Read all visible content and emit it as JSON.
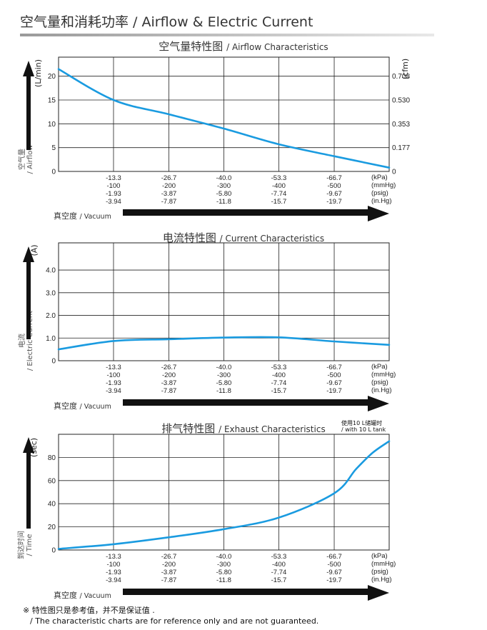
{
  "page": {
    "title": "空气量和消耗功率 / Airflow & Electric Current",
    "vacuum_label_zh": "真空度",
    "vacuum_label_en": "/ Vacuum",
    "note_line1": "※ 特性图只是参考值，并不是保证值 .",
    "note_line2": "/ The characteristic charts are for reference only and are not guaranteed."
  },
  "x_axis": {
    "rows": [
      [
        "-13.3",
        "-26.7",
        "-40.0",
        "-53.3",
        "-66.7"
      ],
      [
        "-100",
        "-200",
        "-300",
        "-400",
        "-500"
      ],
      [
        "-1.93",
        "-3.87",
        "-5.80",
        "-7.74",
        "-9.67"
      ],
      [
        "-3.94",
        "-7.87",
        "-11.8",
        "-15.7",
        "-19.7"
      ]
    ],
    "units": [
      "(kPa)",
      "(mmHg)",
      "(psig)",
      "(in.Hg)"
    ]
  },
  "colors": {
    "curve": "#1a9be0",
    "grid": "#222222",
    "arrow": "#111111"
  },
  "chart_data": [
    {
      "type": "line",
      "title_zh": "空气量特性图",
      "title_en": "/ Airflow Characteristics",
      "ylabel_zh": "空气量",
      "ylabel_en": "/ Airflow",
      "yunit": "(L/min)",
      "y2unit": "(cfm)",
      "x": [
        0,
        -13.3,
        -26.7,
        -40.0,
        -53.3,
        -66.7,
        -80.0
      ],
      "ylim": [
        0,
        24
      ],
      "yticks": [
        "0",
        "5",
        "10",
        "15",
        "20"
      ],
      "yticks_right": [
        "0",
        "0.177",
        "0.353",
        "0.530",
        "0.708"
      ],
      "grid": true,
      "series": [
        {
          "values": [
            21.5,
            15.0,
            12.0,
            9.0,
            5.7,
            3.2,
            0.8
          ]
        }
      ]
    },
    {
      "type": "line",
      "title_zh": "电流特性图",
      "title_en": "/ Current Characteristics",
      "ylabel_zh": "电流",
      "ylabel_en": "/ Electric Current",
      "yunit": "(A)",
      "x": [
        0,
        -13.3,
        -26.7,
        -40.0,
        -53.3,
        -66.7,
        -80.0
      ],
      "ylim": [
        0,
        5.2
      ],
      "yticks": [
        "0",
        "1.0",
        "2.0",
        "3.0",
        "4.0"
      ],
      "grid": true,
      "series": [
        {
          "values": [
            0.5,
            0.87,
            0.95,
            1.02,
            1.03,
            0.85,
            0.7
          ]
        }
      ]
    },
    {
      "type": "line",
      "title_zh": "排气特性图",
      "title_en": "/ Exhaust Characteristics",
      "ylabel_zh": "到达时间",
      "ylabel_en": "/ Time",
      "yunit": "(sec)",
      "annotation_zh": "使用10 L储罐时",
      "annotation_en": "/ with 10 L tank",
      "x": [
        0,
        -13.3,
        -26.7,
        -40.0,
        -53.3,
        -66.7,
        -72.0,
        -76.0,
        -80.0
      ],
      "ylim": [
        0,
        100
      ],
      "yticks": [
        "0",
        "20",
        "40",
        "60",
        "80"
      ],
      "grid": true,
      "series": [
        {
          "values": [
            1,
            5,
            11,
            18,
            28,
            49,
            70,
            84,
            94
          ]
        }
      ]
    }
  ]
}
